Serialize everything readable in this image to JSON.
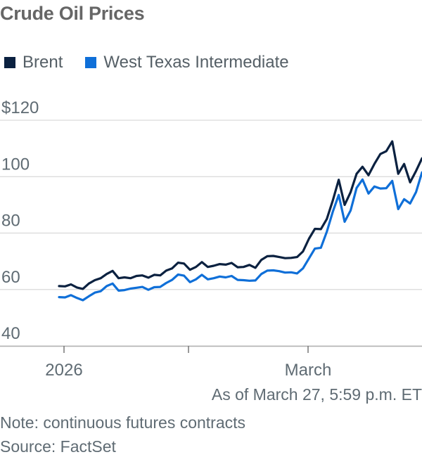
{
  "title": "Crude Oil Prices",
  "legend": {
    "brent": {
      "label": "Brent",
      "color": "#0b2140"
    },
    "wti": {
      "label": "West Texas Intermediate",
      "color": "#0f6fd8"
    }
  },
  "footer": {
    "as_of": "As of March 27, 5:59 p.m. ET",
    "note": "Note: continuous futures contracts",
    "source": "Source: FactSet"
  },
  "chart_data": {
    "type": "line",
    "ylim": [
      35,
      122
    ],
    "y_ticks": [
      {
        "value": 120,
        "label": "$120"
      },
      {
        "value": 100,
        "label": "100"
      },
      {
        "value": 80,
        "label": "80"
      },
      {
        "value": 60,
        "label": "60"
      },
      {
        "value": 40,
        "label": "40"
      }
    ],
    "x_ticks": [
      {
        "x": 0,
        "label": "2026"
      },
      {
        "x": 20,
        "label": ""
      },
      {
        "x": 40,
        "label": "March"
      }
    ],
    "xlim": [
      -1,
      58
    ],
    "grid": true,
    "legend_position": "top-left",
    "series": [
      {
        "name": "Brent",
        "color": "#0b2140",
        "values": [
          [
            0,
            61.2
          ],
          [
            1,
            61.1
          ],
          [
            2,
            61.8
          ],
          [
            3,
            60.7
          ],
          [
            4,
            60.2
          ],
          [
            5,
            62.1
          ],
          [
            6,
            63.3
          ],
          [
            7,
            64.0
          ],
          [
            8,
            65.5
          ],
          [
            9,
            66.6
          ],
          [
            10,
            64.0
          ],
          [
            11,
            64.3
          ],
          [
            12,
            64.0
          ],
          [
            13,
            64.8
          ],
          [
            14,
            65.0
          ],
          [
            15,
            64.2
          ],
          [
            16,
            65.2
          ],
          [
            17,
            65.0
          ],
          [
            18,
            66.7
          ],
          [
            19,
            67.5
          ],
          [
            20,
            69.5
          ],
          [
            21,
            69.2
          ],
          [
            22,
            67.0
          ],
          [
            23,
            68.0
          ],
          [
            24,
            69.7
          ],
          [
            25,
            68.0
          ],
          [
            26,
            68.4
          ],
          [
            27,
            69.0
          ],
          [
            28,
            68.8
          ],
          [
            29,
            69.4
          ],
          [
            30,
            67.9
          ],
          [
            31,
            68.0
          ],
          [
            32,
            68.7
          ],
          [
            33,
            67.7
          ],
          [
            34,
            70.5
          ],
          [
            35,
            71.8
          ],
          [
            36,
            71.9
          ],
          [
            37,
            71.5
          ],
          [
            38,
            71.1
          ],
          [
            39,
            71.2
          ],
          [
            40,
            71.5
          ],
          [
            41,
            73.5
          ],
          [
            42,
            78.0
          ],
          [
            43,
            81.5
          ],
          [
            44,
            81.4
          ],
          [
            45,
            85.0
          ],
          [
            46,
            91.5
          ],
          [
            47,
            98.9
          ],
          [
            48,
            90.0
          ],
          [
            49,
            94.5
          ],
          [
            50,
            101.0
          ],
          [
            51,
            103.5
          ],
          [
            52,
            100.5
          ],
          [
            53,
            104.5
          ],
          [
            54,
            108.0
          ],
          [
            55,
            109.0
          ],
          [
            56,
            112.5
          ],
          [
            57,
            101.0
          ],
          [
            58,
            104.5
          ],
          [
            59,
            98.0
          ],
          [
            60,
            102.0
          ],
          [
            61,
            106.5
          ]
        ]
      },
      {
        "name": "West Texas Intermediate",
        "color": "#0f6fd8",
        "values": [
          [
            0,
            57.3
          ],
          [
            1,
            57.2
          ],
          [
            2,
            58.0
          ],
          [
            3,
            57.0
          ],
          [
            4,
            56.2
          ],
          [
            5,
            57.6
          ],
          [
            6,
            58.9
          ],
          [
            7,
            59.4
          ],
          [
            8,
            61.2
          ],
          [
            9,
            62.1
          ],
          [
            10,
            59.6
          ],
          [
            11,
            59.8
          ],
          [
            12,
            60.3
          ],
          [
            13,
            60.6
          ],
          [
            14,
            60.9
          ],
          [
            15,
            59.9
          ],
          [
            16,
            60.8
          ],
          [
            17,
            60.9
          ],
          [
            18,
            62.3
          ],
          [
            19,
            63.4
          ],
          [
            20,
            65.3
          ],
          [
            21,
            64.9
          ],
          [
            22,
            62.6
          ],
          [
            23,
            63.6
          ],
          [
            24,
            65.2
          ],
          [
            25,
            63.6
          ],
          [
            26,
            64.0
          ],
          [
            27,
            64.6
          ],
          [
            28,
            64.3
          ],
          [
            29,
            64.8
          ],
          [
            30,
            63.4
          ],
          [
            31,
            63.3
          ],
          [
            32,
            63.1
          ],
          [
            33,
            63.2
          ],
          [
            34,
            65.5
          ],
          [
            35,
            66.7
          ],
          [
            36,
            66.8
          ],
          [
            37,
            66.5
          ],
          [
            38,
            66.0
          ],
          [
            39,
            66.1
          ],
          [
            40,
            65.7
          ],
          [
            41,
            67.5
          ],
          [
            42,
            71.0
          ],
          [
            43,
            74.5
          ],
          [
            44,
            74.8
          ],
          [
            45,
            80.5
          ],
          [
            46,
            87.5
          ],
          [
            47,
            93.5
          ],
          [
            48,
            84.0
          ],
          [
            49,
            88.0
          ],
          [
            50,
            96.0
          ],
          [
            51,
            99.0
          ],
          [
            52,
            94.0
          ],
          [
            53,
            96.5
          ],
          [
            54,
            95.8
          ],
          [
            55,
            95.9
          ],
          [
            56,
            98.5
          ],
          [
            57,
            88.5
          ],
          [
            58,
            92.0
          ],
          [
            59,
            90.5
          ],
          [
            60,
            94.5
          ],
          [
            61,
            101.5
          ]
        ]
      }
    ]
  }
}
